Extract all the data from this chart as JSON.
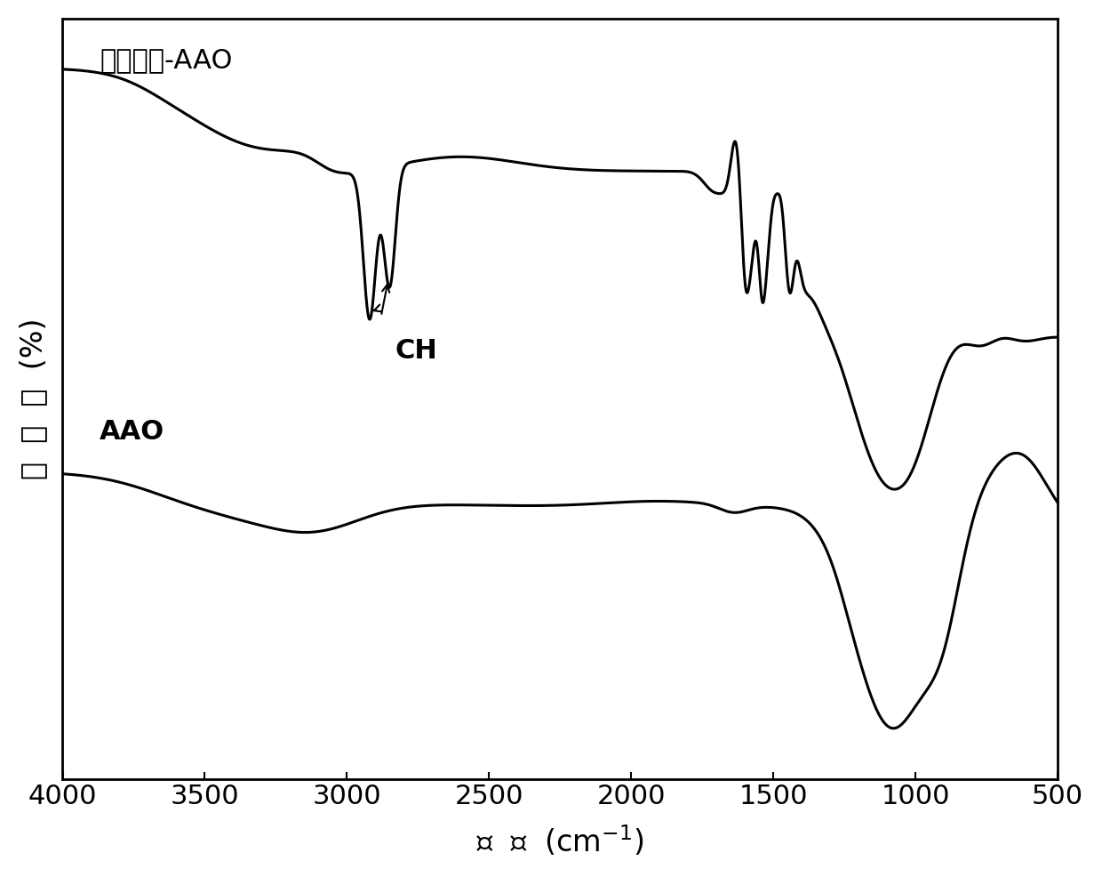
{
  "title": "",
  "xlabel": "波 数  (cm⁻¹)",
  "ylabel": "透过率  (%)",
  "xlim": [
    4000,
    500
  ],
  "label_top": "油酸修饰-AAO",
  "label_bottom": "AAO",
  "ch_label": "CH",
  "background_color": "#ffffff",
  "line_color": "#000000",
  "linewidth": 2.2,
  "fontsize_axis_label": 24,
  "fontsize_tick": 22,
  "fontsize_annotation": 22,
  "xticks": [
    4000,
    3500,
    3000,
    2500,
    2000,
    1500,
    1000,
    500
  ]
}
